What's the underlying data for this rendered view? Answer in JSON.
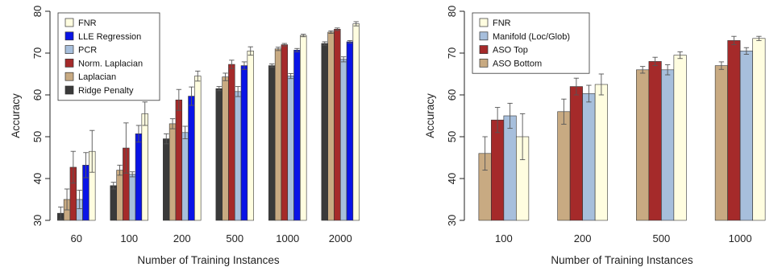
{
  "chart_data": [
    {
      "type": "bar",
      "xlabel": "Number of Training Instances",
      "ylabel": "Accuracy",
      "ylim": [
        30,
        80
      ],
      "yticks": [
        30,
        40,
        50,
        60,
        70,
        80
      ],
      "categories": [
        "60",
        "100",
        "200",
        "500",
        "1000",
        "2000"
      ],
      "legend_position": "top-left",
      "error_bars": true,
      "series": [
        {
          "name": "Ridge Penalty",
          "color": "#3a3a3a",
          "values": [
            31.7,
            38.3,
            49.5,
            61.5,
            67.0,
            72.3
          ],
          "errors": [
            1.5,
            0.8,
            1.2,
            0.5,
            0.4,
            0.4
          ]
        },
        {
          "name": "Laplacian",
          "color": "#c8aa82",
          "values": [
            35.0,
            42.0,
            53.1,
            64.3,
            71.0,
            75.0
          ],
          "errors": [
            2.5,
            1.2,
            1.2,
            0.9,
            0.4,
            0.3
          ]
        },
        {
          "name": "Norm. Laplacian",
          "color": "#a52a2a",
          "values": [
            42.7,
            47.3,
            58.8,
            67.3,
            72.0,
            75.7
          ],
          "errors": [
            3.8,
            6.0,
            2.5,
            1.0,
            0.3,
            0.3
          ]
        },
        {
          "name": "PCR",
          "color": "#a7bfdc",
          "values": [
            35.0,
            41.0,
            51.0,
            60.8,
            64.5,
            68.5
          ],
          "errors": [
            2.2,
            0.6,
            1.5,
            1.2,
            0.6,
            0.6
          ]
        },
        {
          "name": "LLE Regression",
          "color": "#0a14e6",
          "values": [
            43.2,
            50.7,
            59.7,
            67.0,
            70.7,
            72.7
          ],
          "errors": [
            3.0,
            2.0,
            2.2,
            0.9,
            0.4,
            0.3
          ]
        },
        {
          "name": "FNR",
          "color": "#fffde0",
          "values": [
            46.5,
            55.5,
            64.5,
            70.5,
            74.2,
            77.0
          ],
          "errors": [
            5.0,
            2.8,
            1.2,
            1.0,
            0.3,
            0.5
          ]
        }
      ],
      "legend_order": [
        "FNR",
        "LLE Regression",
        "PCR",
        "Norm. Laplacian",
        "Laplacian",
        "Ridge Penalty"
      ]
    },
    {
      "type": "bar",
      "xlabel": "Number of Training Instances",
      "ylabel": "Accuracy",
      "ylim": [
        30,
        80
      ],
      "yticks": [
        30,
        40,
        50,
        60,
        70,
        80
      ],
      "categories": [
        "100",
        "200",
        "500",
        "1000"
      ],
      "legend_position": "top-left",
      "error_bars": true,
      "series": [
        {
          "name": "ASO Bottom",
          "color": "#c8aa82",
          "values": [
            46.0,
            56.0,
            66.0,
            67.0
          ],
          "errors": [
            4.0,
            3.0,
            0.8,
            0.9
          ]
        },
        {
          "name": "ASO Top",
          "color": "#a52a2a",
          "values": [
            54.0,
            62.0,
            68.0,
            73.0
          ],
          "errors": [
            3.0,
            2.0,
            1.0,
            1.0
          ]
        },
        {
          "name": "Manifold (Loc/Glob)",
          "color": "#a7bfdc",
          "values": [
            55.0,
            60.3,
            66.0,
            70.5
          ],
          "errors": [
            3.0,
            2.0,
            1.2,
            0.8
          ]
        },
        {
          "name": "FNR",
          "color": "#fffde0",
          "values": [
            50.0,
            62.5,
            69.5,
            73.5
          ],
          "errors": [
            5.5,
            2.5,
            0.8,
            0.5
          ]
        }
      ],
      "legend_order": [
        "FNR",
        "Manifold (Loc/Glob)",
        "ASO Top",
        "ASO Bottom"
      ]
    }
  ]
}
